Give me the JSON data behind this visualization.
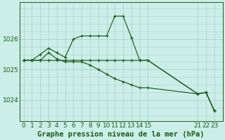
{
  "background_color": "#cceee8",
  "grid_color": "#aad4ce",
  "line_color": "#1a5c1a",
  "title": "Graphe pression niveau de la mer (hPa)",
  "ylim": [
    1023.3,
    1027.2
  ],
  "yticks": [
    1024,
    1025,
    1026
  ],
  "series": [
    {
      "x": [
        0,
        1,
        2,
        3,
        4,
        5,
        6,
        7,
        8,
        9,
        10,
        11,
        12,
        13,
        14,
        15,
        21,
        22,
        23
      ],
      "y": [
        1025.3,
        1025.3,
        1025.5,
        1025.7,
        1025.55,
        1025.4,
        1026.0,
        1026.1,
        1026.1,
        1026.1,
        1026.1,
        1026.75,
        1026.75,
        1026.05,
        1025.3,
        1025.3,
        1024.2,
        1024.25,
        1023.65
      ]
    },
    {
      "x": [
        0,
        1,
        2,
        3,
        4,
        5,
        6,
        7,
        8,
        9,
        10,
        11,
        12,
        13,
        14,
        15,
        21,
        22,
        23
      ],
      "y": [
        1025.3,
        1025.3,
        1025.3,
        1025.55,
        1025.35,
        1025.25,
        1025.25,
        1025.25,
        1025.15,
        1025.0,
        1024.85,
        1024.7,
        1024.6,
        1024.5,
        1024.4,
        1024.4,
        1024.2,
        1024.25,
        1023.65
      ]
    },
    {
      "x": [
        0,
        1,
        2,
        3,
        4,
        5,
        6,
        7,
        8,
        9,
        10,
        11,
        12,
        13,
        14,
        15,
        21,
        22,
        23
      ],
      "y": [
        1025.3,
        1025.3,
        1025.3,
        1025.3,
        1025.3,
        1025.3,
        1025.3,
        1025.3,
        1025.3,
        1025.3,
        1025.3,
        1025.3,
        1025.3,
        1025.3,
        1025.3,
        1025.3,
        1024.2,
        1024.25,
        1023.65
      ]
    }
  ],
  "xlim": [
    -0.5,
    24.0
  ],
  "xtick_positions": [
    0,
    1,
    2,
    3,
    4,
    5,
    6,
    7,
    8,
    9,
    10,
    11,
    12,
    13,
    14,
    15,
    21,
    22,
    23
  ],
  "xtick_labels": [
    "0",
    "1",
    "2",
    "3",
    "4",
    "5",
    "6",
    "7",
    "8",
    "9",
    "10",
    "11",
    "12",
    "13",
    "14",
    "15",
    "21",
    "22",
    "23"
  ],
  "title_fontsize": 7.5,
  "tick_fontsize": 6.5
}
